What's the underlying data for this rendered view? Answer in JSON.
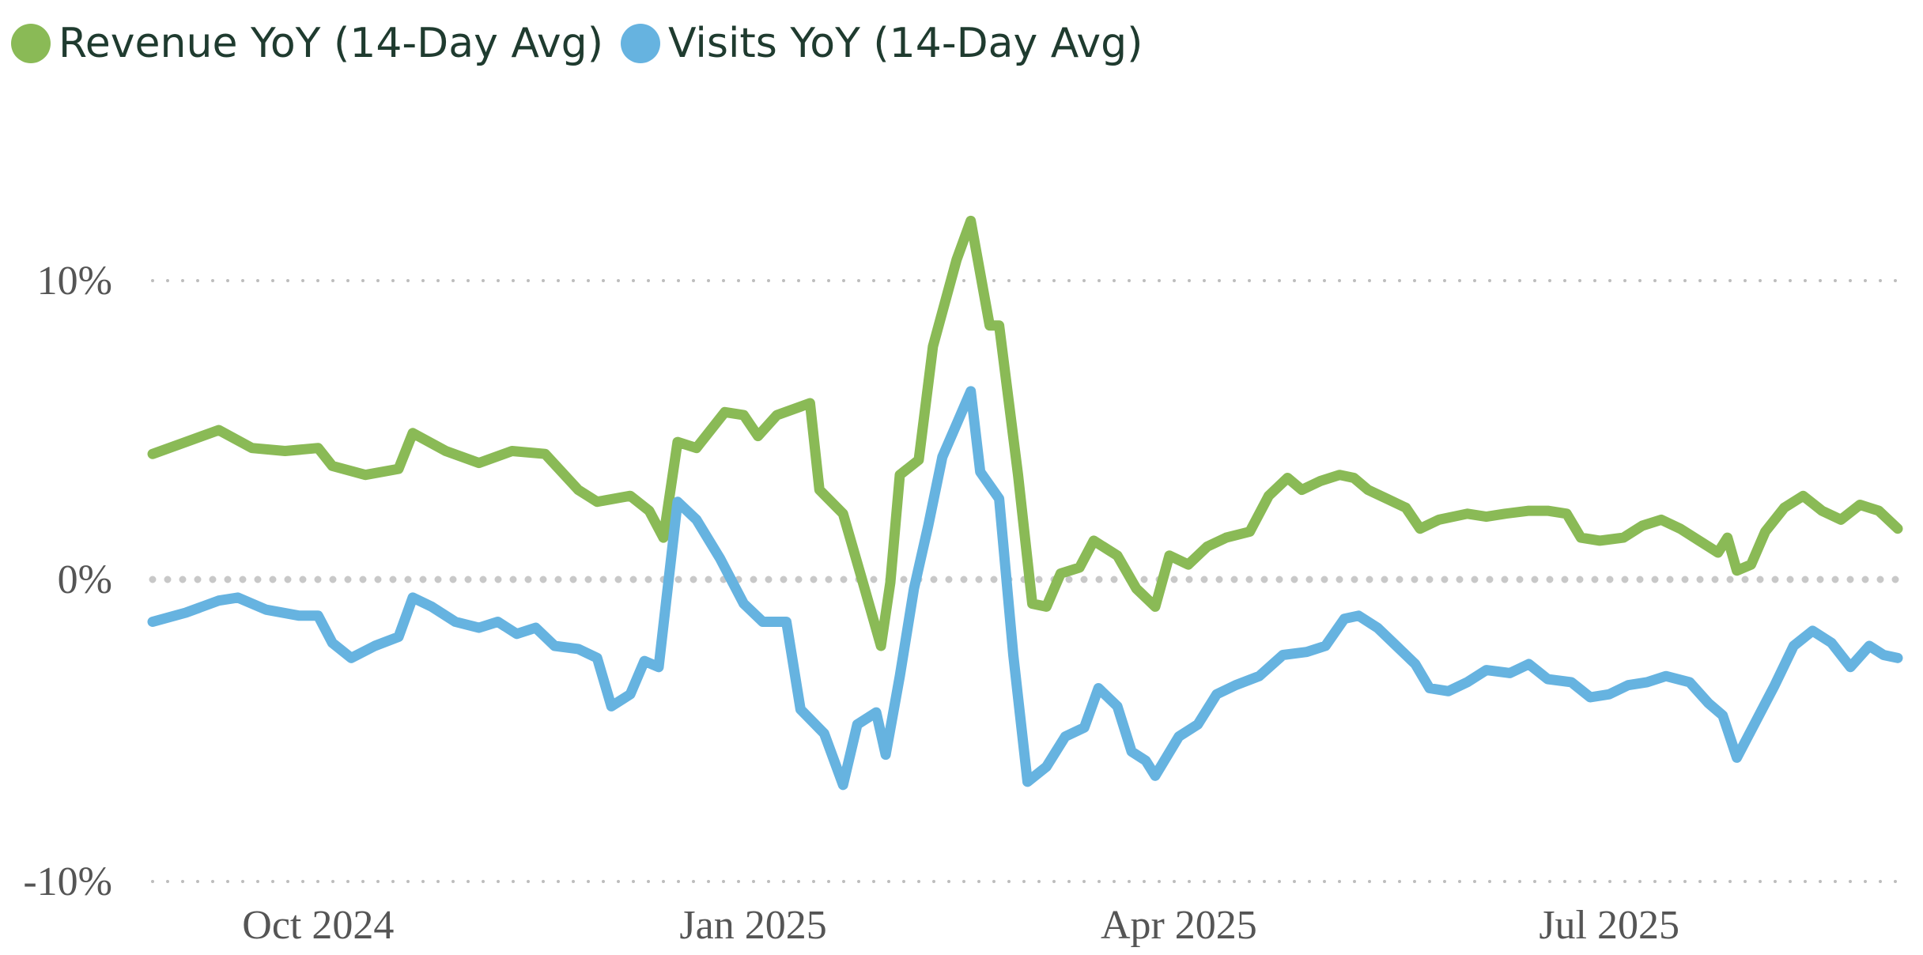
{
  "chart_data": {
    "type": "line",
    "title": "",
    "xlabel": "",
    "ylabel": "",
    "y_unit": "%",
    "ylim": [
      -10,
      10
    ],
    "xlim": [
      "2024-08-27",
      "2025-08-31"
    ],
    "grid": "horizontal dotted",
    "legend_position": "top-left",
    "y_ticks": [
      {
        "label": "10%",
        "value": 10
      },
      {
        "label": "0%",
        "value": 0
      },
      {
        "label": "-10%",
        "value": -10
      }
    ],
    "x_ticks": [
      {
        "label": "Oct 2024",
        "date": "2024-10-01"
      },
      {
        "label": "Jan 2025",
        "date": "2025-01-01"
      },
      {
        "label": "Apr 2025",
        "date": "2025-04-01"
      },
      {
        "label": "Jul 2025",
        "date": "2025-07-01"
      }
    ],
    "series": [
      {
        "name": "Revenue YoY (14-Day Avg)",
        "color": "#8aba56",
        "points": [
          [
            "2024-08-27",
            4.2
          ],
          [
            "2024-09-03",
            4.6
          ],
          [
            "2024-09-10",
            5.0
          ],
          [
            "2024-09-17",
            4.4
          ],
          [
            "2024-09-24",
            4.3
          ],
          [
            "2024-10-01",
            4.4
          ],
          [
            "2024-10-04",
            3.8
          ],
          [
            "2024-10-11",
            3.5
          ],
          [
            "2024-10-18",
            3.7
          ],
          [
            "2024-10-21",
            4.9
          ],
          [
            "2024-10-28",
            4.3
          ],
          [
            "2024-11-04",
            3.9
          ],
          [
            "2024-11-11",
            4.3
          ],
          [
            "2024-11-18",
            4.2
          ],
          [
            "2024-11-25",
            3.0
          ],
          [
            "2024-11-29",
            2.6
          ],
          [
            "2024-12-06",
            2.8
          ],
          [
            "2024-12-10",
            2.3
          ],
          [
            "2024-12-13",
            1.4
          ],
          [
            "2024-12-16",
            4.6
          ],
          [
            "2024-12-20",
            4.4
          ],
          [
            "2024-12-26",
            5.6
          ],
          [
            "2024-12-30",
            5.5
          ],
          [
            "2025-01-02",
            4.8
          ],
          [
            "2025-01-06",
            5.5
          ],
          [
            "2025-01-13",
            5.9
          ],
          [
            "2025-01-15",
            3.0
          ],
          [
            "2025-01-20",
            2.2
          ],
          [
            "2025-01-24",
            0.0
          ],
          [
            "2025-01-28",
            -2.2
          ],
          [
            "2025-01-30",
            -0.1
          ],
          [
            "2025-02-01",
            3.5
          ],
          [
            "2025-02-05",
            4.0
          ],
          [
            "2025-02-08",
            7.8
          ],
          [
            "2025-02-13",
            10.7
          ],
          [
            "2025-02-16",
            12.0
          ],
          [
            "2025-02-20",
            8.5
          ],
          [
            "2025-02-22",
            8.5
          ],
          [
            "2025-02-26",
            3.5
          ],
          [
            "2025-03-01",
            -0.8
          ],
          [
            "2025-03-04",
            -0.9
          ],
          [
            "2025-03-07",
            0.2
          ],
          [
            "2025-03-11",
            0.4
          ],
          [
            "2025-03-14",
            1.3
          ],
          [
            "2025-03-19",
            0.8
          ],
          [
            "2025-03-23",
            -0.3
          ],
          [
            "2025-03-27",
            -0.9
          ],
          [
            "2025-03-30",
            0.8
          ],
          [
            "2025-04-03",
            0.5
          ],
          [
            "2025-04-07",
            1.1
          ],
          [
            "2025-04-11",
            1.4
          ],
          [
            "2025-04-16",
            1.6
          ],
          [
            "2025-04-20",
            2.8
          ],
          [
            "2025-04-24",
            3.4
          ],
          [
            "2025-04-27",
            3.0
          ],
          [
            "2025-05-01",
            3.3
          ],
          [
            "2025-05-05",
            3.5
          ],
          [
            "2025-05-08",
            3.4
          ],
          [
            "2025-05-11",
            3.0
          ],
          [
            "2025-05-15",
            2.7
          ],
          [
            "2025-05-19",
            2.4
          ],
          [
            "2025-05-22",
            1.7
          ],
          [
            "2025-05-26",
            2.0
          ],
          [
            "2025-06-01",
            2.2
          ],
          [
            "2025-06-05",
            2.1
          ],
          [
            "2025-06-09",
            2.2
          ],
          [
            "2025-06-14",
            2.3
          ],
          [
            "2025-06-18",
            2.3
          ],
          [
            "2025-06-22",
            2.2
          ],
          [
            "2025-06-25",
            1.4
          ],
          [
            "2025-06-29",
            1.3
          ],
          [
            "2025-07-04",
            1.4
          ],
          [
            "2025-07-08",
            1.8
          ],
          [
            "2025-07-12",
            2.0
          ],
          [
            "2025-07-16",
            1.7
          ],
          [
            "2025-07-20",
            1.3
          ],
          [
            "2025-07-24",
            0.9
          ],
          [
            "2025-07-26",
            1.4
          ],
          [
            "2025-07-28",
            0.3
          ],
          [
            "2025-07-31",
            0.5
          ],
          [
            "2025-08-03",
            1.6
          ],
          [
            "2025-08-07",
            2.4
          ],
          [
            "2025-08-11",
            2.8
          ],
          [
            "2025-08-15",
            2.3
          ],
          [
            "2025-08-19",
            2.0
          ],
          [
            "2025-08-23",
            2.5
          ],
          [
            "2025-08-27",
            2.3
          ],
          [
            "2025-08-31",
            1.7
          ]
        ]
      },
      {
        "name": "Visits YoY (14-Day Avg)",
        "color": "#66b3e0",
        "points": [
          [
            "2024-08-27",
            -1.4
          ],
          [
            "2024-09-03",
            -1.1
          ],
          [
            "2024-09-10",
            -0.7
          ],
          [
            "2024-09-14",
            -0.6
          ],
          [
            "2024-09-20",
            -1.0
          ],
          [
            "2024-09-27",
            -1.2
          ],
          [
            "2024-10-01",
            -1.2
          ],
          [
            "2024-10-04",
            -2.1
          ],
          [
            "2024-10-08",
            -2.6
          ],
          [
            "2024-10-13",
            -2.2
          ],
          [
            "2024-10-18",
            -1.9
          ],
          [
            "2024-10-21",
            -0.6
          ],
          [
            "2024-10-25",
            -0.9
          ],
          [
            "2024-10-30",
            -1.4
          ],
          [
            "2024-11-04",
            -1.6
          ],
          [
            "2024-11-08",
            -1.4
          ],
          [
            "2024-11-12",
            -1.8
          ],
          [
            "2024-11-16",
            -1.6
          ],
          [
            "2024-11-20",
            -2.2
          ],
          [
            "2024-11-25",
            -2.3
          ],
          [
            "2024-11-29",
            -2.6
          ],
          [
            "2024-12-02",
            -4.2
          ],
          [
            "2024-12-06",
            -3.8
          ],
          [
            "2024-12-09",
            -2.7
          ],
          [
            "2024-12-12",
            -2.9
          ],
          [
            "2024-12-16",
            2.6
          ],
          [
            "2024-12-20",
            2.0
          ],
          [
            "2024-12-25",
            0.7
          ],
          [
            "2024-12-30",
            -0.8
          ],
          [
            "2025-01-03",
            -1.4
          ],
          [
            "2025-01-08",
            -1.4
          ],
          [
            "2025-01-11",
            -4.3
          ],
          [
            "2025-01-16",
            -5.1
          ],
          [
            "2025-01-20",
            -6.8
          ],
          [
            "2025-01-23",
            -4.8
          ],
          [
            "2025-01-27",
            -4.4
          ],
          [
            "2025-01-29",
            -5.8
          ],
          [
            "2025-02-01",
            -3.2
          ],
          [
            "2025-02-04",
            -0.3
          ],
          [
            "2025-02-07",
            1.8
          ],
          [
            "2025-02-10",
            4.1
          ],
          [
            "2025-02-13",
            5.2
          ],
          [
            "2025-02-16",
            6.3
          ],
          [
            "2025-02-18",
            3.6
          ],
          [
            "2025-02-22",
            2.7
          ],
          [
            "2025-02-25",
            -2.5
          ],
          [
            "2025-02-28",
            -6.7
          ],
          [
            "2025-03-04",
            -6.2
          ],
          [
            "2025-03-08",
            -5.2
          ],
          [
            "2025-03-12",
            -4.9
          ],
          [
            "2025-03-15",
            -3.6
          ],
          [
            "2025-03-19",
            -4.2
          ],
          [
            "2025-03-22",
            -5.7
          ],
          [
            "2025-03-25",
            -6.0
          ],
          [
            "2025-03-27",
            -6.5
          ],
          [
            "2025-04-01",
            -5.2
          ],
          [
            "2025-04-05",
            -4.8
          ],
          [
            "2025-04-09",
            -3.8
          ],
          [
            "2025-04-13",
            -3.5
          ],
          [
            "2025-04-18",
            -3.2
          ],
          [
            "2025-04-23",
            -2.5
          ],
          [
            "2025-04-28",
            -2.4
          ],
          [
            "2025-05-02",
            -2.2
          ],
          [
            "2025-05-06",
            -1.3
          ],
          [
            "2025-05-09",
            -1.2
          ],
          [
            "2025-05-13",
            -1.6
          ],
          [
            "2025-05-17",
            -2.2
          ],
          [
            "2025-05-21",
            -2.8
          ],
          [
            "2025-05-24",
            -3.6
          ],
          [
            "2025-05-28",
            -3.7
          ],
          [
            "2025-06-01",
            -3.4
          ],
          [
            "2025-06-05",
            -3.0
          ],
          [
            "2025-06-10",
            -3.1
          ],
          [
            "2025-06-14",
            -2.8
          ],
          [
            "2025-06-18",
            -3.3
          ],
          [
            "2025-06-23",
            -3.4
          ],
          [
            "2025-06-27",
            -3.9
          ],
          [
            "2025-07-01",
            -3.8
          ],
          [
            "2025-07-05",
            -3.5
          ],
          [
            "2025-07-09",
            -3.4
          ],
          [
            "2025-07-13",
            -3.2
          ],
          [
            "2025-07-18",
            -3.4
          ],
          [
            "2025-07-22",
            -4.1
          ],
          [
            "2025-07-25",
            -4.5
          ],
          [
            "2025-07-28",
            -5.9
          ],
          [
            "2025-08-01",
            -4.7
          ],
          [
            "2025-08-05",
            -3.5
          ],
          [
            "2025-08-09",
            -2.2
          ],
          [
            "2025-08-13",
            -1.7
          ],
          [
            "2025-08-17",
            -2.1
          ],
          [
            "2025-08-21",
            -2.9
          ],
          [
            "2025-08-25",
            -2.2
          ],
          [
            "2025-08-28",
            -2.5
          ],
          [
            "2025-08-31",
            -2.6
          ]
        ]
      }
    ]
  }
}
